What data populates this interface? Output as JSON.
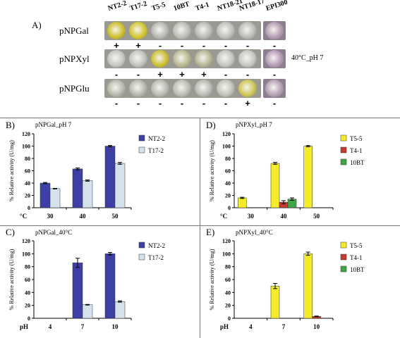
{
  "panel_a": {
    "letter": "A)",
    "columns": [
      "NT2-2",
      "T17-2",
      "T5-5",
      "10BT",
      "T4-1",
      "NT18-21",
      "NT18-17",
      "EPI300"
    ],
    "side_note": "40°C_pH 7",
    "rows": [
      {
        "label": "pNPGal",
        "signs": [
          "+",
          "+",
          "-",
          "-",
          "-",
          "-",
          "-",
          "-"
        ],
        "well_colors": [
          "#cdbf2a",
          "#d2c52c",
          "#b7b7b2",
          "#bdbcb6",
          "#b9b8b4",
          "#c0bfbd",
          "#bbbab6",
          "#b59cb4"
        ]
      },
      {
        "label": "pNPXyl",
        "signs": [
          "-",
          "-",
          "+",
          "+",
          "+",
          "-",
          "-",
          "-"
        ],
        "well_colors": [
          "#c6c6c4",
          "#c2c2c0",
          "#cbbf2f",
          "#bbb790",
          "#b5b594",
          "#c4c4c2",
          "#c6c6c3",
          "#b79bb6"
        ]
      },
      {
        "label": "pNPGlu",
        "signs": [
          "-",
          "-",
          "-",
          "-",
          "-",
          "-",
          "+",
          "-"
        ],
        "well_colors": [
          "#b8b9ac",
          "#b6b8ad",
          "#b8b9b0",
          "#bcbcb4",
          "#b9bab3",
          "#c2c2ba",
          "#cfc653",
          "#b7a0b6"
        ]
      }
    ]
  },
  "chart_data": [
    {
      "letter": "B)",
      "type": "bar",
      "title": "pNPGal_pH 7",
      "ylabel": "% Relative activity (U/mg)",
      "xunit": "°C",
      "categories": [
        "30",
        "40",
        "50"
      ],
      "ylim": [
        0,
        120
      ],
      "yticks": [
        0,
        20,
        40,
        60,
        80,
        100,
        120
      ],
      "series": [
        {
          "name": "NT2-2",
          "color": "#3e3fa4",
          "values": [
            40,
            63,
            100
          ],
          "errors": [
            1,
            1.5,
            1
          ]
        },
        {
          "name": "T17-2",
          "color": "#d5e1ec",
          "values": [
            31,
            44,
            72
          ],
          "errors": [
            0.5,
            1,
            1.5
          ]
        }
      ]
    },
    {
      "letter": "D)",
      "type": "bar",
      "title": "pNPXyl_pH 7",
      "ylabel": "% Relative activity (U/mg)",
      "xunit": "°C",
      "categories": [
        "30",
        "40",
        "50"
      ],
      "ylim": [
        0,
        120
      ],
      "yticks": [
        0,
        20,
        40,
        60,
        80,
        100,
        120
      ],
      "series": [
        {
          "name": "T5-5",
          "color": "#f4ec2a",
          "values": [
            16,
            72,
            100
          ],
          "errors": [
            1,
            1.5,
            1
          ]
        },
        {
          "name": "T4-1",
          "color": "#c43a2c",
          "values": [
            0,
            9,
            0
          ],
          "errors": [
            0,
            2.5,
            0
          ]
        },
        {
          "name": "10BT",
          "color": "#3fa545",
          "values": [
            0,
            14,
            0
          ],
          "errors": [
            0,
            2,
            0
          ]
        }
      ]
    },
    {
      "letter": "C)",
      "type": "bar",
      "title": "pNPGal_40°C",
      "ylabel": "% Relative activity (U/mg)",
      "xunit": "pH",
      "categories": [
        "4",
        "7",
        "10"
      ],
      "ylim": [
        0,
        120
      ],
      "yticks": [
        0,
        20,
        40,
        60,
        80,
        100,
        120
      ],
      "series": [
        {
          "name": "NT2-2",
          "color": "#3e3fa4",
          "values": [
            0,
            86,
            100
          ],
          "errors": [
            0,
            7,
            2
          ]
        },
        {
          "name": "T17-2",
          "color": "#d5e1ec",
          "values": [
            0,
            21,
            26
          ],
          "errors": [
            0,
            0.5,
            1
          ]
        }
      ]
    },
    {
      "letter": "E)",
      "type": "bar",
      "title": "pNPXyl_40°C",
      "ylabel": "% Relative activity (U/mg)",
      "xunit": "pH",
      "categories": [
        "4",
        "7",
        "10"
      ],
      "ylim": [
        0,
        120
      ],
      "yticks": [
        0,
        20,
        40,
        60,
        80,
        100,
        120
      ],
      "series": [
        {
          "name": "T5-5",
          "color": "#f4ec2a",
          "values": [
            0,
            50,
            100
          ],
          "errors": [
            0,
            4,
            2.5
          ]
        },
        {
          "name": "T4-1",
          "color": "#c43a2c",
          "values": [
            0,
            0,
            3
          ],
          "errors": [
            0,
            0,
            0.5
          ]
        },
        {
          "name": "10BT",
          "color": "#3fa545",
          "values": [
            0,
            0,
            0
          ],
          "errors": [
            0,
            0,
            0
          ]
        }
      ]
    }
  ]
}
